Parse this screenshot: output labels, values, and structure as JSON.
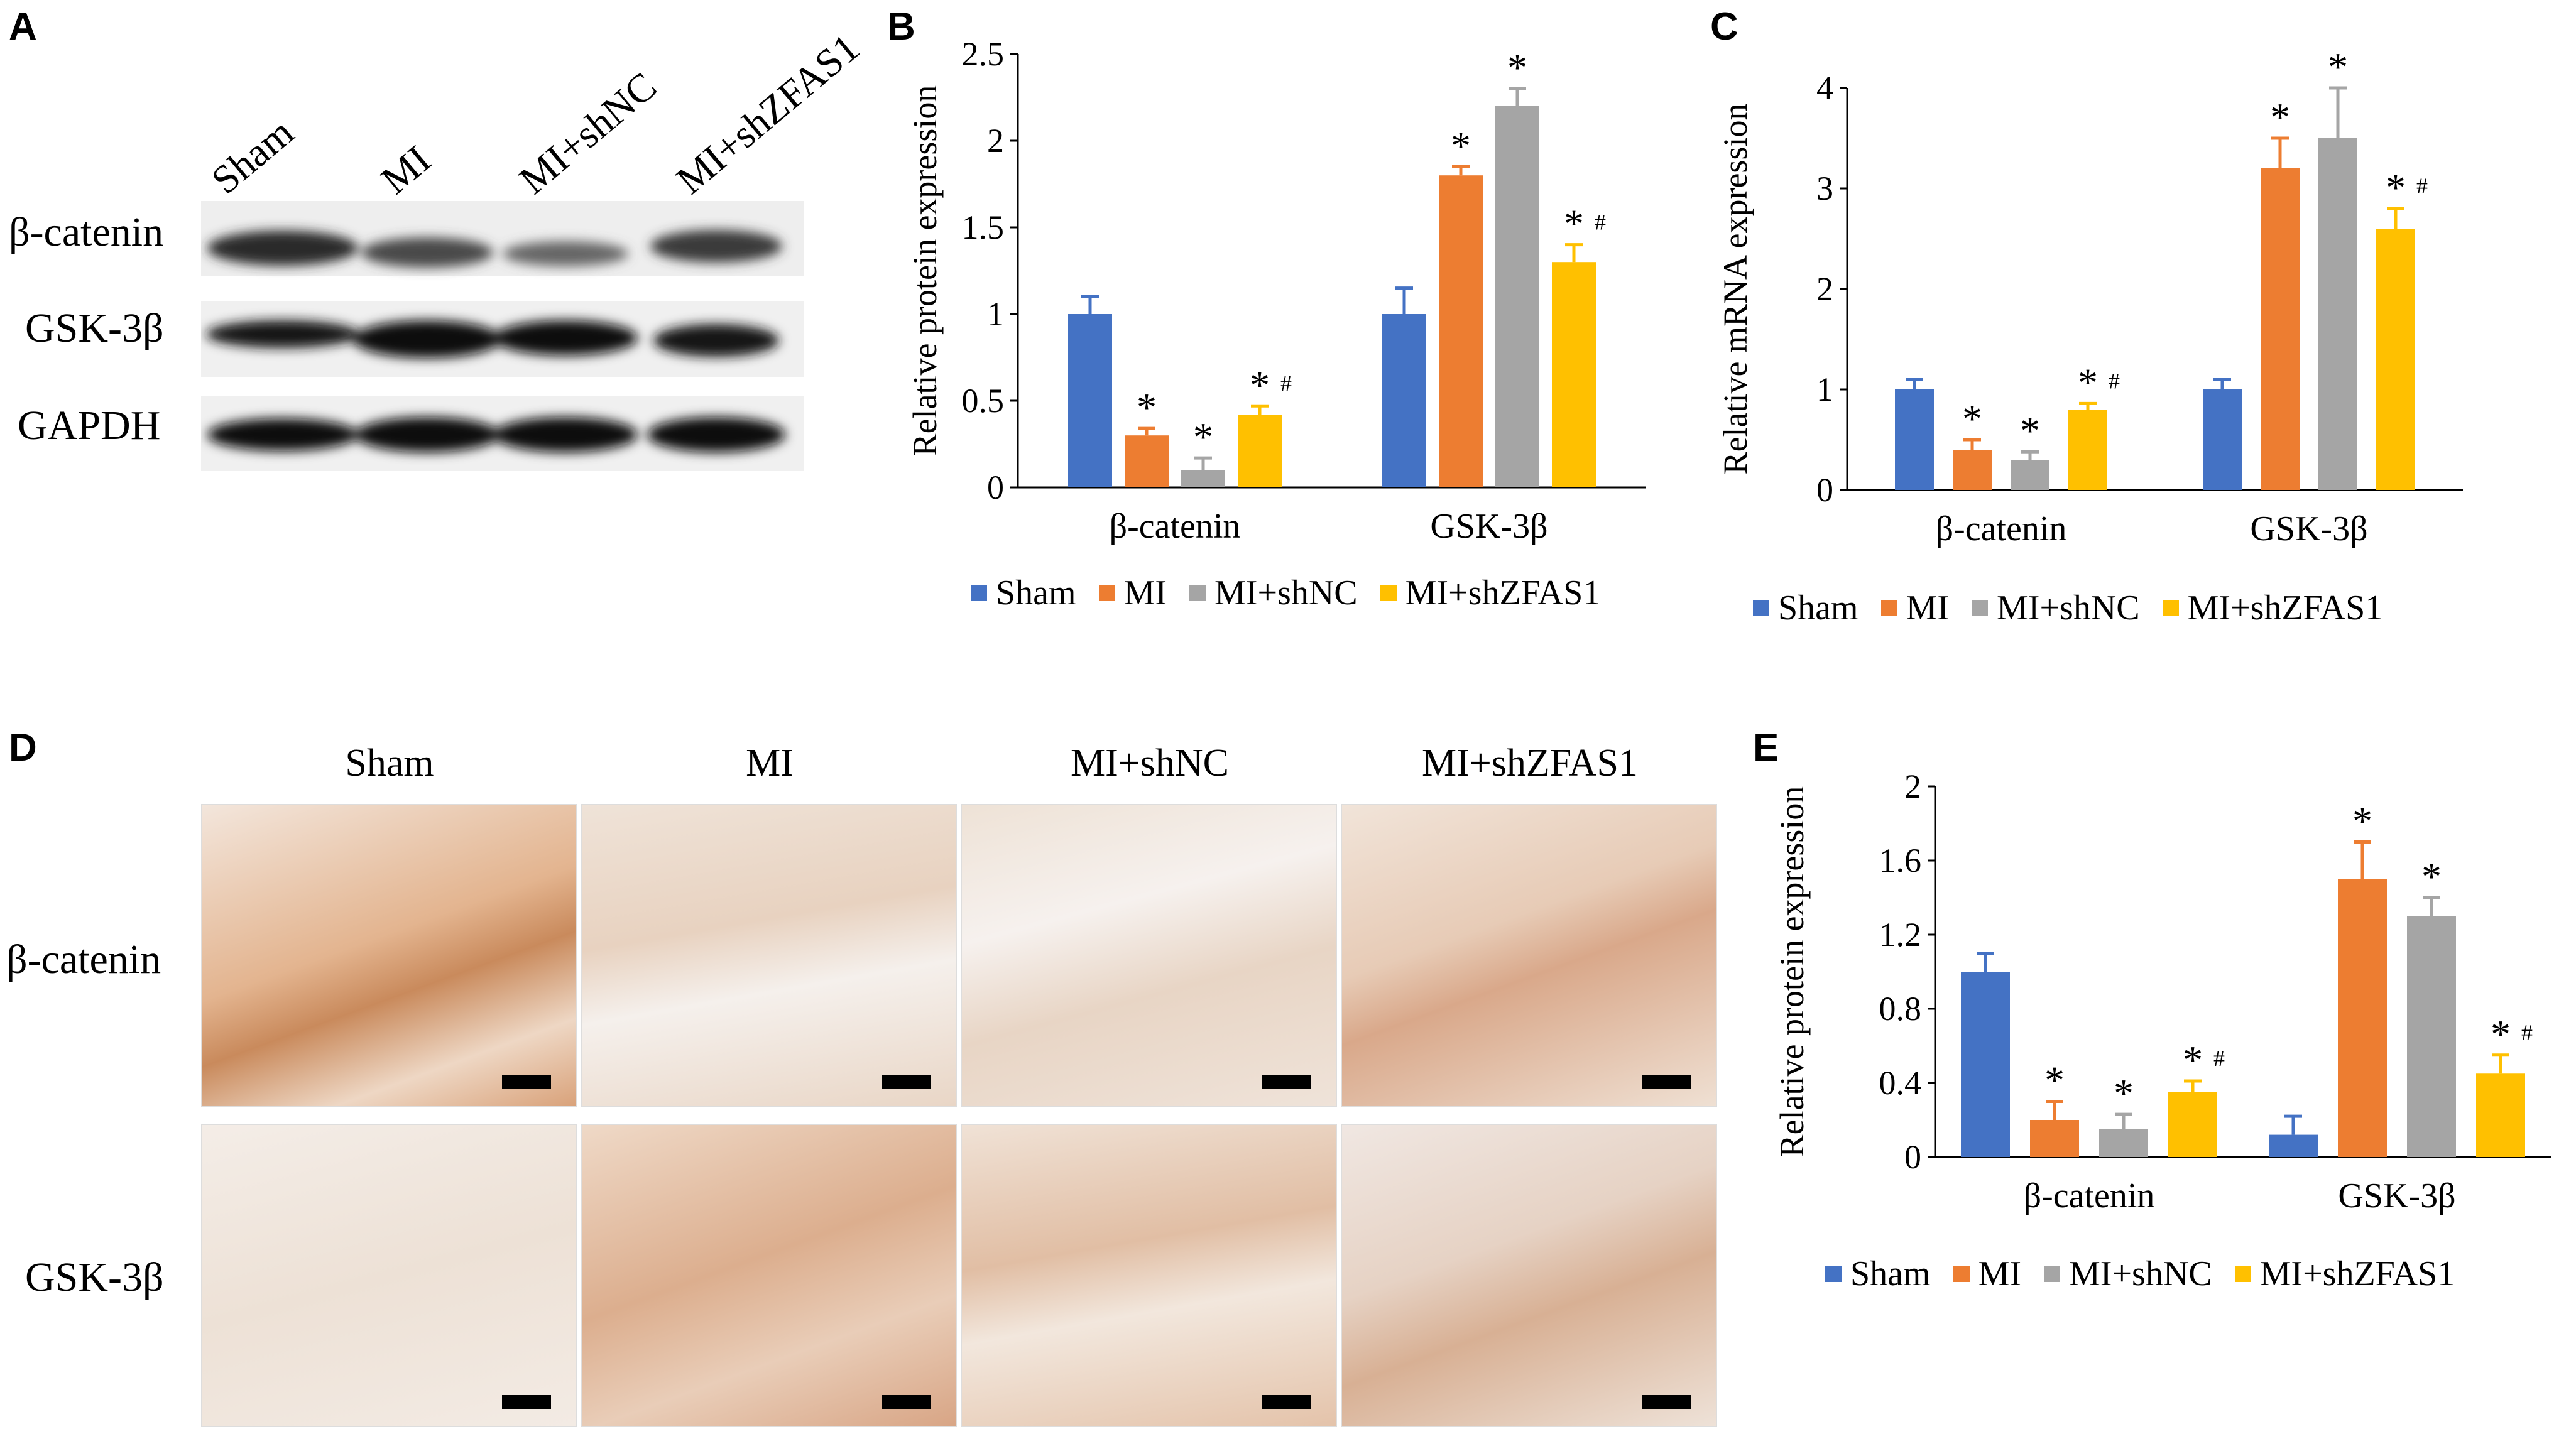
{
  "panels": {
    "A": "A",
    "B": "B",
    "C": "C",
    "D": "D",
    "E": "E"
  },
  "western_blot": {
    "columns": [
      "Sham",
      "MI",
      "MI+shNC",
      "MI+shZFAS1"
    ],
    "rows": [
      "β-catenin",
      "GSK-3β",
      "GAPDH"
    ]
  },
  "ihc": {
    "columns": [
      "Sham",
      "MI",
      "MI+shNC",
      "MI+shZFAS1"
    ],
    "rows": [
      "β-catenin",
      "GSK-3β"
    ]
  },
  "colors": {
    "Sham": "#4472c4",
    "MI": "#ed7d31",
    "MI+shNC": "#a5a5a5",
    "MI+shZFAS1": "#ffc000"
  },
  "markers": {
    "sig": "*",
    "sig2": "#"
  },
  "chart_data": [
    {
      "id": "B",
      "type": "bar",
      "categories": [
        "β-catenin",
        "GSK-3β"
      ],
      "ylabel": "Relative protein expression",
      "ylim": [
        0,
        2.5
      ],
      "yticks": [
        "0",
        "0.5",
        "1",
        "1.5",
        "2",
        "2.5"
      ],
      "ytick_values": [
        0,
        0.5,
        1,
        1.5,
        2,
        2.5
      ],
      "series": [
        {
          "name": "Sham",
          "values": [
            1.0,
            1.0
          ],
          "errors": [
            0.1,
            0.15
          ],
          "marks": [
            "",
            ""
          ]
        },
        {
          "name": "MI",
          "values": [
            0.3,
            1.8
          ],
          "errors": [
            0.04,
            0.05
          ],
          "marks": [
            "*",
            "*"
          ]
        },
        {
          "name": "MI+shNC",
          "values": [
            0.1,
            2.2
          ],
          "errors": [
            0.07,
            0.1
          ],
          "marks": [
            "*",
            "*"
          ]
        },
        {
          "name": "MI+shZFAS1",
          "values": [
            0.42,
            1.3
          ],
          "errors": [
            0.05,
            0.1
          ],
          "marks": [
            "*#",
            "*#"
          ]
        }
      ]
    },
    {
      "id": "C",
      "type": "bar",
      "categories": [
        "β-catenin",
        "GSK-3β"
      ],
      "ylabel": "Relative mRNA expression",
      "ylim": [
        0,
        4
      ],
      "yticks": [
        "0",
        "1",
        "2",
        "3",
        "4"
      ],
      "ytick_values": [
        0,
        1,
        2,
        3,
        4
      ],
      "series": [
        {
          "name": "Sham",
          "values": [
            1.0,
            1.0
          ],
          "errors": [
            0.1,
            0.1
          ],
          "marks": [
            "",
            ""
          ]
        },
        {
          "name": "MI",
          "values": [
            0.4,
            3.2
          ],
          "errors": [
            0.1,
            0.3
          ],
          "marks": [
            "*",
            "*"
          ]
        },
        {
          "name": "MI+shNC",
          "values": [
            0.3,
            3.5
          ],
          "errors": [
            0.08,
            0.5
          ],
          "marks": [
            "*",
            "*"
          ]
        },
        {
          "name": "MI+shZFAS1",
          "values": [
            0.8,
            2.6
          ],
          "errors": [
            0.06,
            0.2
          ],
          "marks": [
            "*#",
            "*#"
          ]
        }
      ]
    },
    {
      "id": "E",
      "type": "bar",
      "categories": [
        "β-catenin",
        "GSK-3β"
      ],
      "ylabel": "Relative protein expression",
      "ylim": [
        0,
        2
      ],
      "yticks": [
        "0",
        "0.4",
        "0.8",
        "1.2",
        "1.6",
        "2"
      ],
      "ytick_values": [
        0,
        0.4,
        0.8,
        1.2,
        1.6,
        2
      ],
      "series": [
        {
          "name": "Sham",
          "values": [
            1.0,
            0.12
          ],
          "errors": [
            0.1,
            0.1
          ],
          "marks": [
            "",
            ""
          ]
        },
        {
          "name": "MI",
          "values": [
            0.2,
            1.5
          ],
          "errors": [
            0.1,
            0.2
          ],
          "marks": [
            "*",
            "*"
          ]
        },
        {
          "name": "MI+shNC",
          "values": [
            0.15,
            1.3
          ],
          "errors": [
            0.08,
            0.1
          ],
          "marks": [
            "*",
            "*"
          ]
        },
        {
          "name": "MI+shZFAS1",
          "values": [
            0.35,
            0.45
          ],
          "errors": [
            0.06,
            0.1
          ],
          "marks": [
            "*#",
            "*#"
          ]
        }
      ]
    }
  ]
}
